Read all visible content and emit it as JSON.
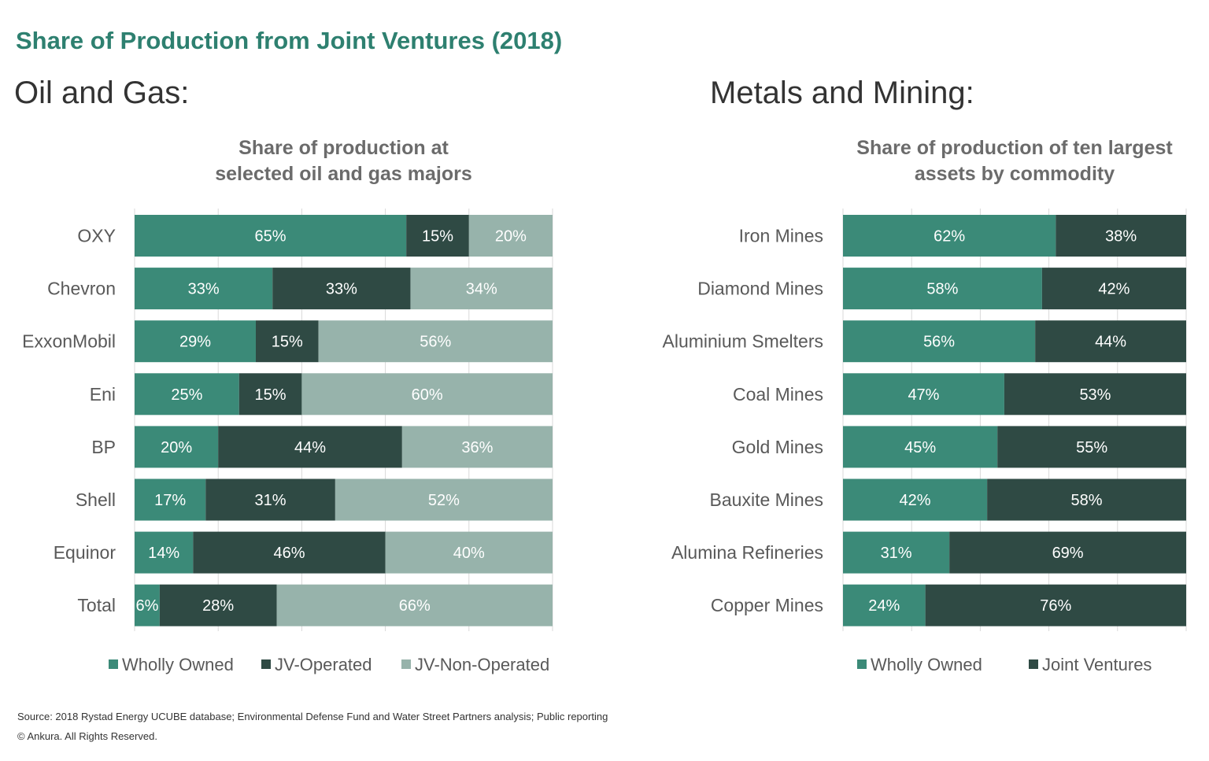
{
  "page": {
    "title": "Share of Production from Joint Ventures (2018)",
    "left_heading": "Oil and Gas:",
    "right_heading": "Metals and Mining:",
    "source": "Source: 2018 Rystad Energy UCUBE database; Environmental Defense Fund and Water Street Partners analysis; Public reporting",
    "copyright": "© Ankura. All Rights Reserved."
  },
  "colors": {
    "wholly_owned": "#3b8a78",
    "joint": "#2f4a44",
    "non_operated": "#97b3ab",
    "title": "#2e8070"
  },
  "chart_data": [
    {
      "type": "bar",
      "orientation": "horizontal",
      "stacked": true,
      "title_lines": [
        "Share of production at",
        "selected oil and gas majors"
      ],
      "categories": [
        "OXY",
        "Chevron",
        "ExxonMobil",
        "Eni",
        "BP",
        "Shell",
        "Equinor",
        "Total"
      ],
      "series": [
        {
          "name": "Wholly Owned",
          "color": "#3b8a78",
          "values": [
            65,
            33,
            29,
            25,
            20,
            17,
            14,
            6
          ]
        },
        {
          "name": "JV-Operated",
          "color": "#2f4a44",
          "values": [
            15,
            33,
            15,
            15,
            44,
            31,
            46,
            28
          ]
        },
        {
          "name": "JV-Non-Operated",
          "color": "#97b3ab",
          "values": [
            20,
            34,
            56,
            60,
            36,
            52,
            40,
            66
          ]
        }
      ],
      "value_suffix": "%",
      "xlim": [
        0,
        100
      ],
      "grid": true,
      "legend_position": "bottom"
    },
    {
      "type": "bar",
      "orientation": "horizontal",
      "stacked": true,
      "title_lines": [
        "Share of production of ten largest",
        "assets by commodity"
      ],
      "categories": [
        "Iron Mines",
        "Diamond Mines",
        "Aluminium Smelters",
        "Coal Mines",
        "Gold Mines",
        "Bauxite Mines",
        "Alumina Refineries",
        "Copper Mines"
      ],
      "series": [
        {
          "name": "Wholly Owned",
          "color": "#3b8a78",
          "values": [
            62,
            58,
            56,
            47,
            45,
            42,
            31,
            24
          ]
        },
        {
          "name": "Joint Ventures",
          "color": "#2f4a44",
          "values": [
            38,
            42,
            44,
            53,
            55,
            58,
            69,
            76
          ]
        }
      ],
      "value_suffix": "%",
      "xlim": [
        0,
        100
      ],
      "grid": true,
      "legend_position": "bottom"
    }
  ]
}
